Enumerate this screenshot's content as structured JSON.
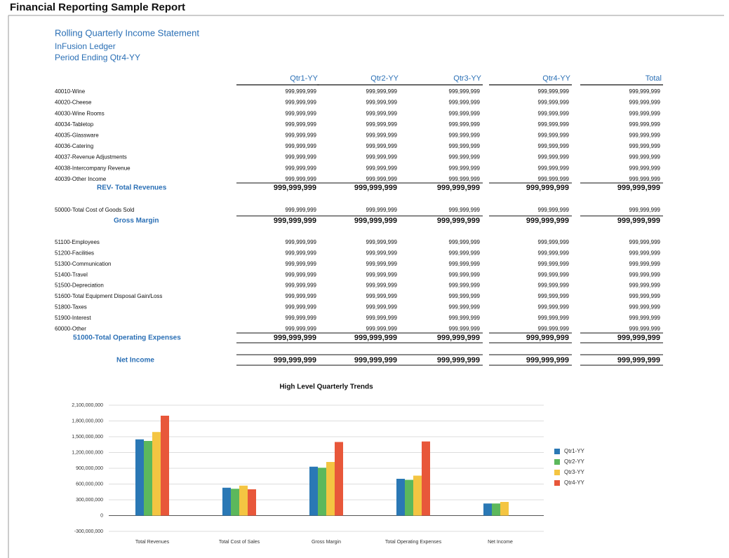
{
  "header": {
    "title": "Financial Reporting Sample Report",
    "subtitle": [
      "Rolling Quarterly Income Statement",
      "InFusion Ledger",
      "Period Ending Qtr4-YY"
    ]
  },
  "table": {
    "columns": [
      "Qtr1-YY",
      "Qtr2-YY",
      "Qtr3-YY",
      "Qtr4-YY",
      "Total"
    ],
    "rows": [
      {
        "label": "40010-Wine",
        "values": [
          "999,999,999",
          "999,999,999",
          "999,999,999",
          "999,999,999",
          "999,999,999"
        ]
      },
      {
        "label": "40020-Cheese",
        "values": [
          "999,999,999",
          "999,999,999",
          "999,999,999",
          "999,999,999",
          "999,999,999"
        ]
      },
      {
        "label": "40030-Wine Rooms",
        "values": [
          "999,999,999",
          "999,999,999",
          "999,999,999",
          "999,999,999",
          "999,999,999"
        ]
      },
      {
        "label": "40034-Tabletop",
        "values": [
          "999,999,999",
          "999,999,999",
          "999,999,999",
          "999,999,999",
          "999,999,999"
        ]
      },
      {
        "label": "40035-Glassware",
        "values": [
          "999,999,999",
          "999,999,999",
          "999,999,999",
          "999,999,999",
          "999,999,999"
        ]
      },
      {
        "label": "40036-Catering",
        "values": [
          "999,999,999",
          "999,999,999",
          "999,999,999",
          "999,999,999",
          "999,999,999"
        ]
      },
      {
        "label": "40037-Revenue Adjustments",
        "values": [
          "999,999,999",
          "999,999,999",
          "999,999,999",
          "999,999,999",
          "999,999,999"
        ]
      },
      {
        "label": "40038-Intercompany Revenue",
        "values": [
          "999,999,999",
          "999,999,999",
          "999,999,999",
          "999,999,999",
          "999,999,999"
        ]
      },
      {
        "label": "40039-Other Income",
        "values": [
          "999,999,999",
          "999,999,999",
          "999,999,999",
          "999,999,999",
          "999,999,999"
        ]
      },
      {
        "label": "REV- Total Revenues",
        "values": [
          "999,999,999",
          "999,999,999",
          "999,999,999",
          "999,999,999",
          "999,999,999"
        ]
      },
      {
        "label": "50000-Total Cost of Goods Sold",
        "values": [
          "999,999,999",
          "999,999,999",
          "999,999,999",
          "999,999,999",
          "999,999,999"
        ]
      },
      {
        "label": "Gross Margin",
        "values": [
          "999,999,999",
          "999,999,999",
          "999,999,999",
          "999,999,999",
          "999,999,999"
        ]
      },
      {
        "label": "51100-Employees",
        "values": [
          "999,999,999",
          "999,999,999",
          "999,999,999",
          "999,999,999",
          "999,999,999"
        ]
      },
      {
        "label": "51200-Facilities",
        "values": [
          "999,999,999",
          "999,999,999",
          "999,999,999",
          "999,999,999",
          "999,999,999"
        ]
      },
      {
        "label": "51300-Communication",
        "values": [
          "999,999,999",
          "999,999,999",
          "999,999,999",
          "999,999,999",
          "999,999,999"
        ]
      },
      {
        "label": "51400-Travel",
        "values": [
          "999,999,999",
          "999,999,999",
          "999,999,999",
          "999,999,999",
          "999,999,999"
        ]
      },
      {
        "label": "51500-Depreciation",
        "values": [
          "999,999,999",
          "999,999,999",
          "999,999,999",
          "999,999,999",
          "999,999,999"
        ]
      },
      {
        "label": "51600-Total Equipment Disposal Gain/Loss",
        "values": [
          "999,999,999",
          "999,999,999",
          "999,999,999",
          "999,999,999",
          "999,999,999"
        ]
      },
      {
        "label": "51800-Taxes",
        "values": [
          "999,999,999",
          "999,999,999",
          "999,999,999",
          "999,999,999",
          "999,999,999"
        ]
      },
      {
        "label": "51900-Interest",
        "values": [
          "999,999,999",
          "999,999,999",
          "999,999,999",
          "999,999,999",
          "999,999,999"
        ]
      },
      {
        "label": "60000-Other",
        "values": [
          "999,999,999",
          "999,999,999",
          "999,999,999",
          "999,999,999",
          "999,999,999"
        ]
      },
      {
        "label": "51000-Total Operating Expenses",
        "values": [
          "999,999,999",
          "999,999,999",
          "999,999,999",
          "999,999,999",
          "999,999,999"
        ]
      },
      {
        "label": "Net Income",
        "values": [
          "999,999,999",
          "999,999,999",
          "999,999,999",
          "999,999,999",
          "999,999,999"
        ]
      }
    ]
  },
  "chart_data": {
    "type": "bar",
    "title": "High Level Quarterly Trends",
    "categories": [
      "Total Revenues",
      "Total Cost of Sales",
      "Gross Margin",
      "Total Operating Expenses",
      "Net Income"
    ],
    "series": [
      {
        "name": "Qtr1-YY",
        "color": "#2a78b5",
        "values": [
          1450000000,
          530000000,
          930000000,
          700000000,
          230000000
        ]
      },
      {
        "name": "Qtr2-YY",
        "color": "#5cb85c",
        "values": [
          1420000000,
          510000000,
          910000000,
          680000000,
          230000000
        ]
      },
      {
        "name": "Qtr3-YY",
        "color": "#f4c542",
        "values": [
          1590000000,
          570000000,
          1020000000,
          760000000,
          260000000
        ]
      },
      {
        "name": "Qtr4-YY",
        "color": "#e8573a",
        "values": [
          1900000000,
          500000000,
          1400000000,
          1410000000,
          null
        ]
      }
    ],
    "ylim": [
      -300000000,
      2100000000
    ],
    "yticks": [
      {
        "value": -300000000,
        "label": "-300,000,000"
      },
      0,
      {
        "value": 300000000,
        "label": "300,000,000"
      },
      {
        "value": 600000000,
        "label": "600,000,000"
      },
      {
        "value": 900000000,
        "label": "900,000,000"
      },
      {
        "value": 1200000000,
        "label": "1,200,000,000"
      },
      {
        "value": 1500000000,
        "label": "1,500,000,000"
      },
      {
        "value": 1800000000,
        "label": "1,800,000,000"
      },
      {
        "value": 2100000000,
        "label": "2,100,000,000"
      }
    ],
    "grid": true,
    "legend": "right"
  }
}
